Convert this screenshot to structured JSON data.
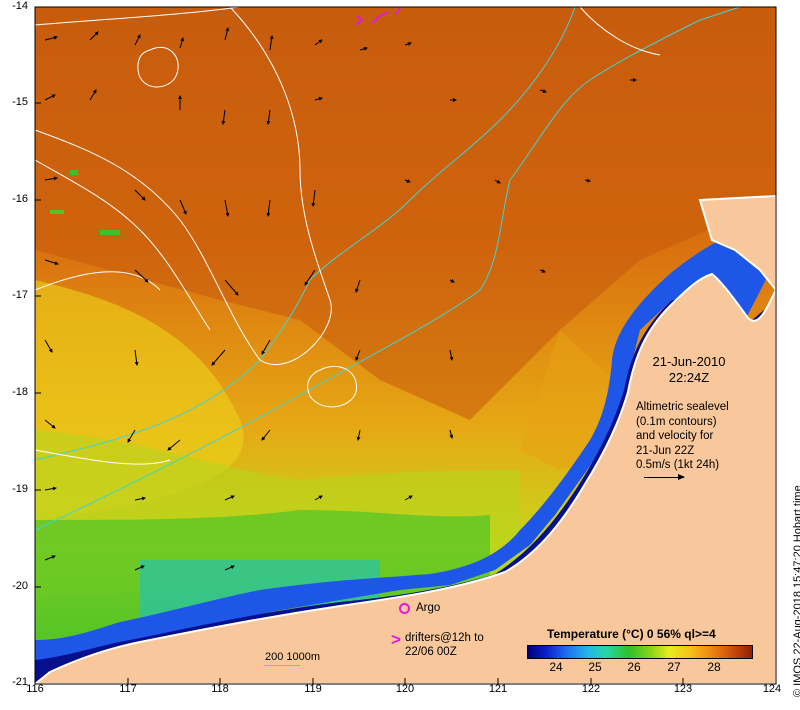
{
  "map": {
    "title_date": "21-Jun-2010",
    "title_time": "22:24Z",
    "note_lines": [
      "Altimetric sealevel",
      "(0.1m contours)",
      "and velocity for",
      "21-Jun 22Z",
      "0.5m/s (1kt 24h)"
    ],
    "legend": {
      "argo_label": "Argo",
      "drifter_lines": [
        "drifters@12h to",
        "22/06 00Z"
      ],
      "depth_label": "200  1000m"
    },
    "colorbar": {
      "title": "Temperature (°C) 0 56% ql>=4",
      "ticks": [
        "24",
        "25",
        "26",
        "27",
        "28"
      ]
    },
    "y_ticks": [
      "-14",
      "-15",
      "-16",
      "-17",
      "-18",
      "-19",
      "-20",
      "-21"
    ],
    "x_ticks": [
      "116",
      "117",
      "118",
      "119",
      "120",
      "121",
      "122",
      "123",
      "124"
    ],
    "credit": "© IMOS 22-Aug-2018 15:47:20 Hobart time",
    "colors": {
      "land": "#f8c89c",
      "warm_sst": "#c9600e",
      "cool_sst": "#0a1ec8",
      "contour": "#ffffff",
      "isobath": "#40d4d4",
      "marker": "#e01cd8"
    }
  }
}
